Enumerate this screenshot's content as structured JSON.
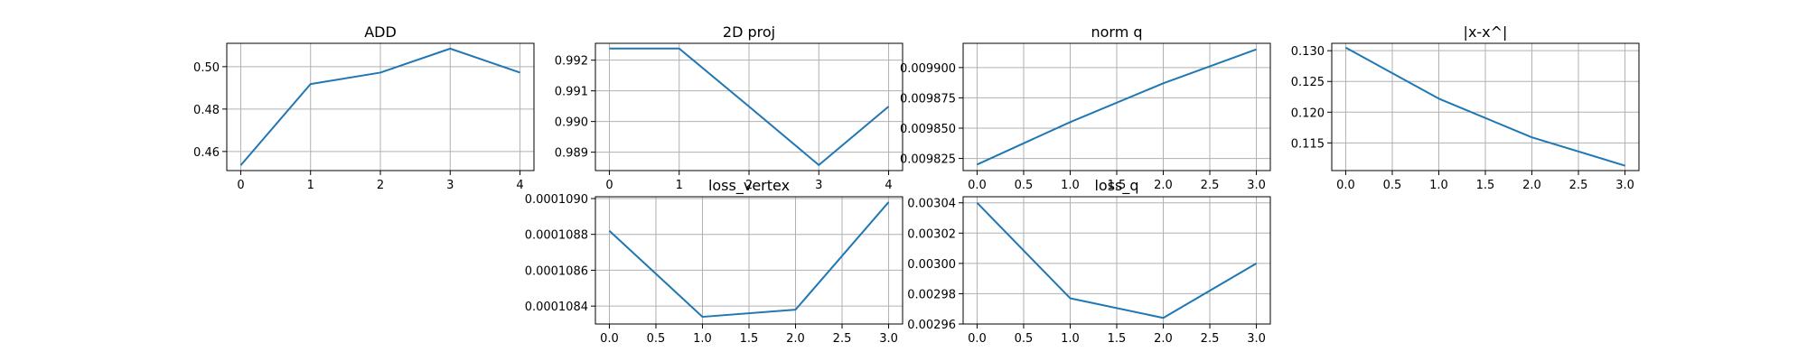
{
  "chart_data": [
    {
      "type": "line",
      "title": "ADD",
      "x": [
        0,
        1,
        2,
        3,
        4
      ],
      "y": [
        0.4535,
        0.4918,
        0.4972,
        0.5085,
        0.4972
      ],
      "xlim": [
        -0.2,
        4.2
      ],
      "ylim": [
        0.451,
        0.511
      ],
      "xticks": [
        0,
        1,
        2,
        3,
        4
      ],
      "xtick_labels": [
        "0",
        "1",
        "2",
        "3",
        "4"
      ],
      "yticks": [
        0.46,
        0.48,
        0.5
      ],
      "ytick_labels": [
        "0.46",
        "0.48",
        "0.50"
      ],
      "grid": true,
      "color": "#1f77b4"
    },
    {
      "type": "line",
      "title": "2D proj",
      "x": [
        0,
        1,
        2,
        3,
        4
      ],
      "y": [
        0.99238,
        0.99238,
        0.99049,
        0.98858,
        0.99049
      ],
      "xlim": [
        -0.2,
        4.2
      ],
      "ylim": [
        0.9884,
        0.99255
      ],
      "xticks": [
        0,
        1,
        2,
        3,
        4
      ],
      "xtick_labels": [
        "0",
        "1",
        "2",
        "3",
        "4"
      ],
      "yticks": [
        0.989,
        0.99,
        0.991,
        0.992
      ],
      "ytick_labels": [
        "0.989",
        "0.990",
        "0.991",
        "0.992"
      ],
      "grid": true,
      "color": "#1f77b4"
    },
    {
      "type": "line",
      "title": "norm q",
      "x": [
        0,
        1,
        2,
        3
      ],
      "y": [
        0.00982,
        0.009855,
        0.009887,
        0.009915
      ],
      "xlim": [
        -0.15,
        3.15
      ],
      "ylim": [
        0.009815,
        0.00992
      ],
      "xticks": [
        0,
        0.5,
        1,
        1.5,
        2,
        2.5,
        3
      ],
      "xtick_labels": [
        "0.0",
        "0.5",
        "1.0",
        "1.5",
        "2.0",
        "2.5",
        "3.0"
      ],
      "yticks": [
        0.009825,
        0.00985,
        0.009875,
        0.0099
      ],
      "ytick_labels": [
        "0.009825",
        "0.009850",
        "0.009875",
        "0.009900"
      ],
      "grid": true,
      "color": "#1f77b4"
    },
    {
      "type": "line",
      "title": "|x-x^|",
      "x": [
        0,
        1,
        2,
        3
      ],
      "y": [
        0.1305,
        0.1222,
        0.1159,
        0.1113
      ],
      "xlim": [
        -0.15,
        3.15
      ],
      "ylim": [
        0.1105,
        0.1312
      ],
      "xticks": [
        0,
        0.5,
        1,
        1.5,
        2,
        2.5,
        3
      ],
      "xtick_labels": [
        "0.0",
        "0.5",
        "1.0",
        "1.5",
        "2.0",
        "2.5",
        "3.0"
      ],
      "yticks": [
        0.115,
        0.12,
        0.125,
        0.13
      ],
      "ytick_labels": [
        "0.115",
        "0.120",
        "0.125",
        "0.130"
      ],
      "grid": true,
      "color": "#1f77b4"
    },
    {
      "type": "line",
      "title": "loss_vertex",
      "x": [
        0,
        1,
        2,
        3
      ],
      "y": [
        0.00010882,
        0.00010834,
        0.00010838,
        0.00010898
      ],
      "xlim": [
        -0.15,
        3.15
      ],
      "ylim": [
        0.0001083,
        0.00010901
      ],
      "xticks": [
        0,
        0.5,
        1,
        1.5,
        2,
        2.5,
        3
      ],
      "xtick_labels": [
        "0.0",
        "0.5",
        "1.0",
        "1.5",
        "2.0",
        "2.5",
        "3.0"
      ],
      "yticks": [
        0.0001084,
        0.0001086,
        0.0001088,
        0.000109
      ],
      "ytick_labels": [
        "0.0001084",
        "0.0001086",
        "0.0001088",
        "0.0001090"
      ],
      "grid": true,
      "color": "#1f77b4"
    },
    {
      "type": "line",
      "title": "loss_q",
      "x": [
        0,
        1,
        2,
        3
      ],
      "y": [
        0.00304,
        0.002977,
        0.002964,
        0.003
      ],
      "xlim": [
        -0.15,
        3.15
      ],
      "ylim": [
        0.00296,
        0.003044
      ],
      "xticks": [
        0,
        0.5,
        1,
        1.5,
        2,
        2.5,
        3
      ],
      "xtick_labels": [
        "0.0",
        "0.5",
        "1.0",
        "1.5",
        "2.0",
        "2.5",
        "3.0"
      ],
      "yticks": [
        0.00296,
        0.00298,
        0.003,
        0.00302,
        0.00304
      ],
      "ytick_labels": [
        "0.00296",
        "0.00298",
        "0.00300",
        "0.00302",
        "0.00304"
      ],
      "grid": true,
      "color": "#1f77b4"
    }
  ]
}
